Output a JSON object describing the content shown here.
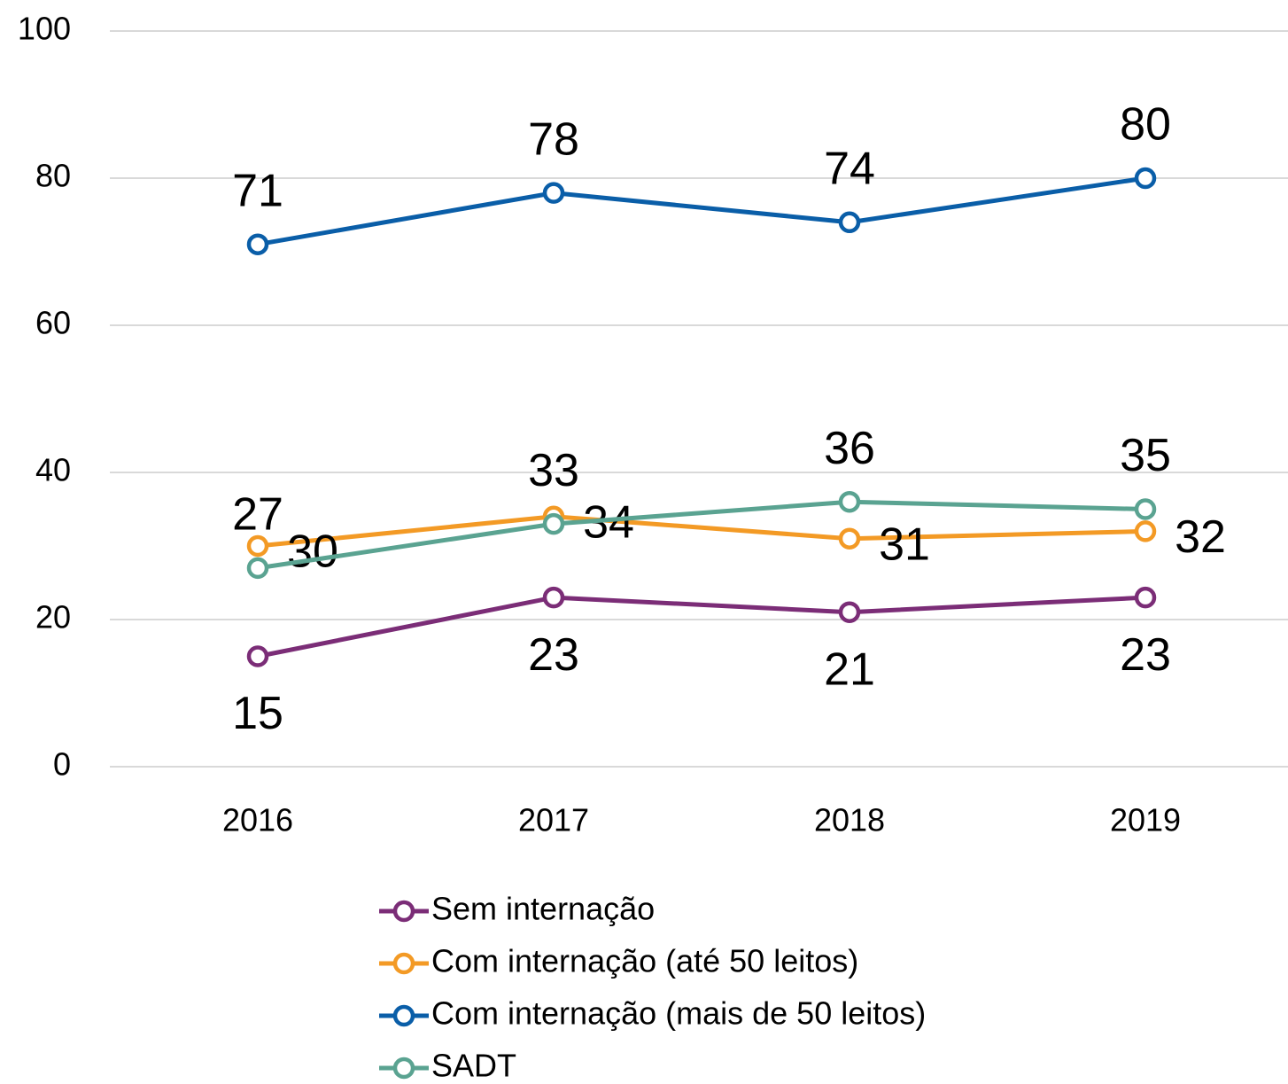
{
  "chart_data": {
    "type": "line",
    "categories": [
      "2016",
      "2017",
      "2018",
      "2019"
    ],
    "series": [
      {
        "name": "Sem internação",
        "color": "#7b2d77",
        "values": [
          15,
          23,
          21,
          23
        ]
      },
      {
        "name": "Com internação (até 50 leitos)",
        "color": "#f39a25",
        "values": [
          30,
          34,
          31,
          32
        ]
      },
      {
        "name": "Com internação (mais de 50 leitos)",
        "color": "#0a5ea8",
        "values": [
          71,
          78,
          74,
          80
        ]
      },
      {
        "name": "SADT",
        "color": "#5aa391",
        "values": [
          27,
          33,
          36,
          35
        ]
      }
    ],
    "ylim": [
      0,
      100
    ],
    "yticks": [
      0,
      20,
      40,
      60,
      80,
      100
    ],
    "grid": true,
    "legend": "bottom"
  }
}
